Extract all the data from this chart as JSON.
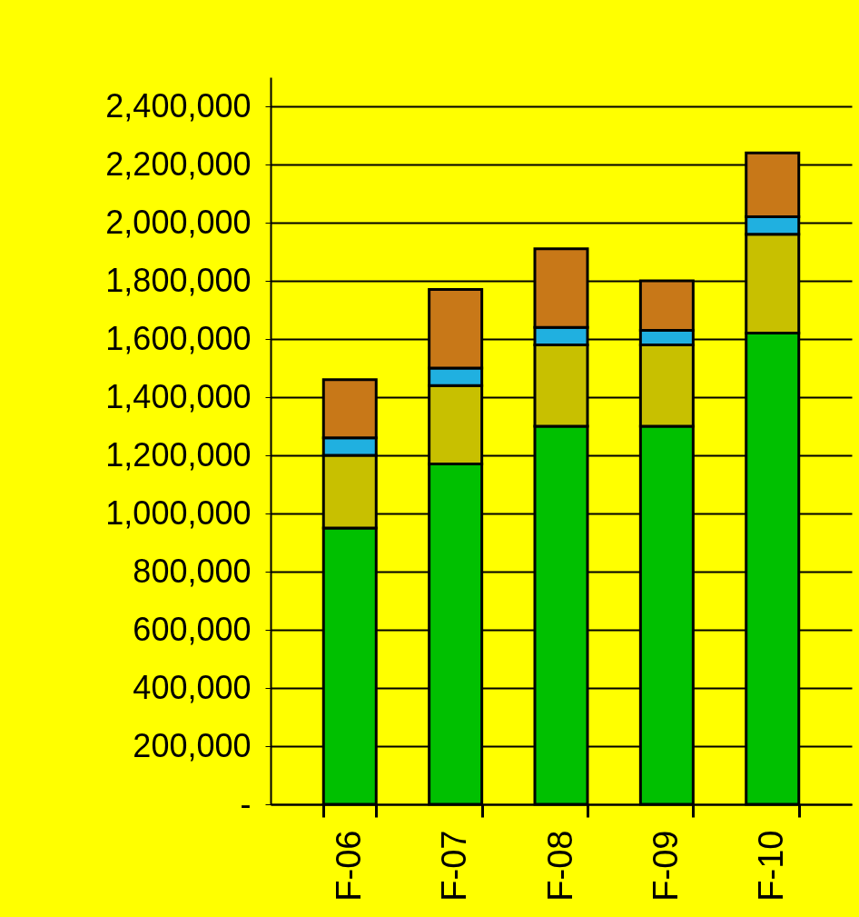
{
  "chart_data": {
    "type": "bar",
    "stacked": true,
    "categories": [
      "F-06",
      "F-07",
      "F-08",
      "F-09",
      "F-10"
    ],
    "series": [
      {
        "color": "#00c000",
        "values": [
          950000,
          1170000,
          1300000,
          1300000,
          1620000
        ]
      },
      {
        "color": "#c8c000",
        "values": [
          250000,
          270000,
          280000,
          280000,
          340000
        ]
      },
      {
        "color": "#20b0e0",
        "values": [
          60000,
          60000,
          60000,
          50000,
          60000
        ]
      },
      {
        "color": "#c87818",
        "values": [
          200000,
          270000,
          270000,
          170000,
          220000
        ]
      }
    ],
    "ylim": [
      0,
      2500000
    ],
    "yticks": [
      {
        "value": 0,
        "label": "-"
      },
      {
        "value": 200000,
        "label": "200,000"
      },
      {
        "value": 400000,
        "label": "400,000"
      },
      {
        "value": 600000,
        "label": "600,000"
      },
      {
        "value": 800000,
        "label": "800,000"
      },
      {
        "value": 1000000,
        "label": "1,000,000"
      },
      {
        "value": 1200000,
        "label": "1,200,000"
      },
      {
        "value": 1400000,
        "label": "1,400,000"
      },
      {
        "value": 1600000,
        "label": "1,600,000"
      },
      {
        "value": 1800000,
        "label": "1,800,000"
      },
      {
        "value": 2000000,
        "label": "2,000,000"
      },
      {
        "value": 2200000,
        "label": "2,200,000"
      },
      {
        "value": 2400000,
        "label": "2,400,000"
      }
    ],
    "grid": "y",
    "legend": false
  }
}
